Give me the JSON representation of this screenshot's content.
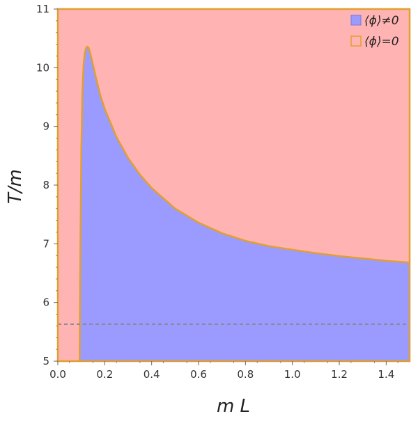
{
  "chart_data": {
    "type": "area",
    "xlabel": "m L",
    "ylabel": "T/m",
    "xlim": [
      0,
      1.5
    ],
    "ylim": [
      5,
      11
    ],
    "x_ticks": [
      "0.0",
      "0.2",
      "0.4",
      "0.6",
      "0.8",
      "1.0",
      "1.2",
      "1.4"
    ],
    "y_ticks": [
      "5",
      "6",
      "7",
      "8",
      "9",
      "10",
      "11"
    ],
    "grid": false,
    "legend_position": "top-right",
    "series": [
      {
        "name": "⟨ϕ⟩≠0",
        "color": "#9b9bff",
        "region": "below boundary curve",
        "boundary": {
          "x": [
            0.093,
            0.095,
            0.1,
            0.105,
            0.11,
            0.115,
            0.12,
            0.125,
            0.13,
            0.135,
            0.14,
            0.15,
            0.16,
            0.18,
            0.2,
            0.25,
            0.3,
            0.35,
            0.4,
            0.5,
            0.6,
            0.7,
            0.8,
            0.9,
            1.0,
            1.1,
            1.2,
            1.3,
            1.4,
            1.5
          ],
          "y": [
            5.0,
            6.4,
            8.6,
            9.6,
            10.05,
            10.25,
            10.33,
            10.36,
            10.35,
            10.3,
            10.22,
            10.05,
            9.87,
            9.55,
            9.3,
            8.82,
            8.46,
            8.18,
            7.95,
            7.6,
            7.36,
            7.18,
            7.05,
            6.96,
            6.9,
            6.84,
            6.79,
            6.75,
            6.71,
            6.68
          ]
        }
      },
      {
        "name": "⟨ϕ⟩=0",
        "color": "#ffb3b3",
        "region": "above boundary curve"
      }
    ],
    "reference_line": {
      "y": 5.63,
      "style": "dashed",
      "color": "#888888"
    },
    "boundary_color": "#e0a030"
  }
}
